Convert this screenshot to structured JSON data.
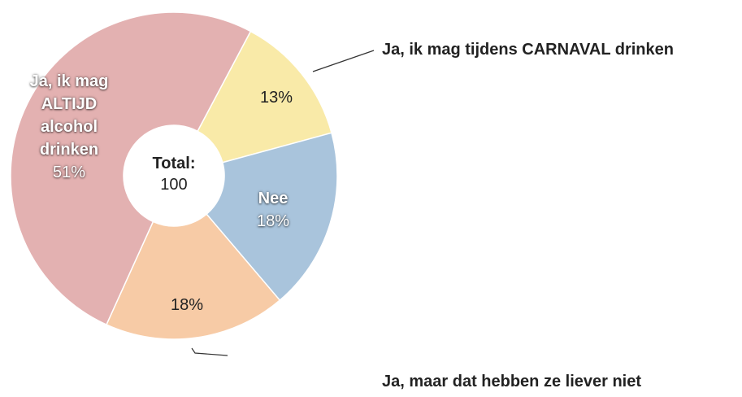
{
  "chart_data": {
    "type": "pie",
    "donut": true,
    "categories": [
      "Ja, ik mag tijdens CARNAVAL drinken",
      "Nee",
      "Ja, maar dat hebben ze liever niet",
      "Ja, ik mag ALTIJD alcohol drinken"
    ],
    "values": [
      13,
      18,
      18,
      51
    ],
    "value_labels": [
      "13%",
      "18%",
      "18%",
      "51%"
    ],
    "colors": [
      "#f9eaa8",
      "#a9c4dc",
      "#f7cba6",
      "#e3b1b1"
    ],
    "total_label": "Total:",
    "total": 100
  }
}
